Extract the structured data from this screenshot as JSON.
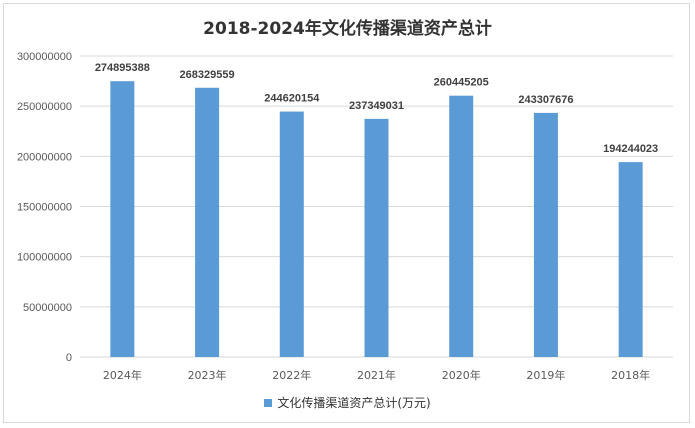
{
  "chart_data": {
    "type": "bar",
    "title": "2018-2024年文化传播渠道资产总计",
    "categories": [
      "2024年",
      "2023年",
      "2022年",
      "2021年",
      "2020年",
      "2019年",
      "2018年"
    ],
    "series": [
      {
        "name": "文化传播渠道资产总计(万元)",
        "color": "#5b9bd5",
        "values": [
          274895388,
          268329559,
          244620154,
          237349031,
          260445205,
          243307676,
          194244023
        ]
      }
    ],
    "yticks": [
      "0",
      "50000000",
      "100000000",
      "150000000",
      "200000000",
      "250000000",
      "300000000"
    ],
    "ylim": [
      0,
      300000000
    ],
    "grid": true,
    "legend": "bottom",
    "xlabel": "",
    "ylabel": ""
  }
}
